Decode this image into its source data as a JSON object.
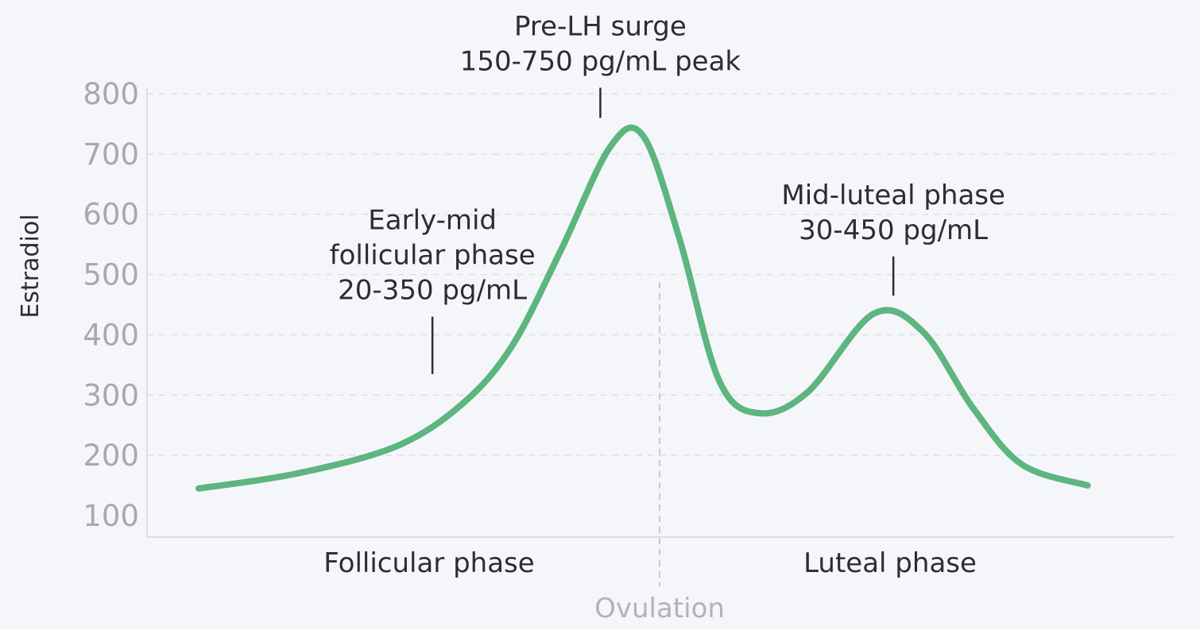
{
  "chart_data": {
    "type": "line",
    "ylabel": "Estradiol",
    "xlabel": "",
    "ylim": [
      100,
      800
    ],
    "yticks": [
      "800",
      "700",
      "600",
      "500",
      "400",
      "300",
      "200",
      "100"
    ],
    "ytick_values": [
      800,
      700,
      600,
      500,
      400,
      300,
      200,
      100
    ],
    "grid": true,
    "x_range": [
      0,
      28
    ],
    "phase_labels": [
      {
        "id": "follicular",
        "label": "Follicular phase",
        "x": 7
      },
      {
        "id": "luteal",
        "label": "Luteal phase",
        "x": 21
      }
    ],
    "marker_line": {
      "label": "Ovulation",
      "x": 14
    },
    "series": [
      {
        "color": "#5db57f",
        "x": [
          0,
          3,
          6,
          8,
          9.5,
          11,
          12.5,
          13.5,
          14.6,
          15.8,
          17,
          18.5,
          20.5,
          22,
          23.5,
          25,
          27
        ],
        "y": [
          145,
          170,
          215,
          285,
          380,
          540,
          712,
          730,
          560,
          325,
          270,
          305,
          435,
          405,
          280,
          185,
          150
        ]
      }
    ],
    "annotations": [
      {
        "id": "early-mid",
        "lines": [
          "Early-mid",
          "follicular phase",
          "20-350 pg/mL"
        ],
        "x": 7.1,
        "line_y": [
          335,
          430
        ]
      },
      {
        "id": "pre-lh",
        "lines": [
          "Pre-LH surge",
          "150-750 pg/mL peak"
        ],
        "x": 12.2,
        "line_y": [
          760,
          810
        ]
      },
      {
        "id": "mid-luteal",
        "lines": [
          "Mid-luteal phase",
          "30-450 pg/mL"
        ],
        "x": 21.1,
        "line_y": [
          465,
          530
        ]
      }
    ]
  }
}
